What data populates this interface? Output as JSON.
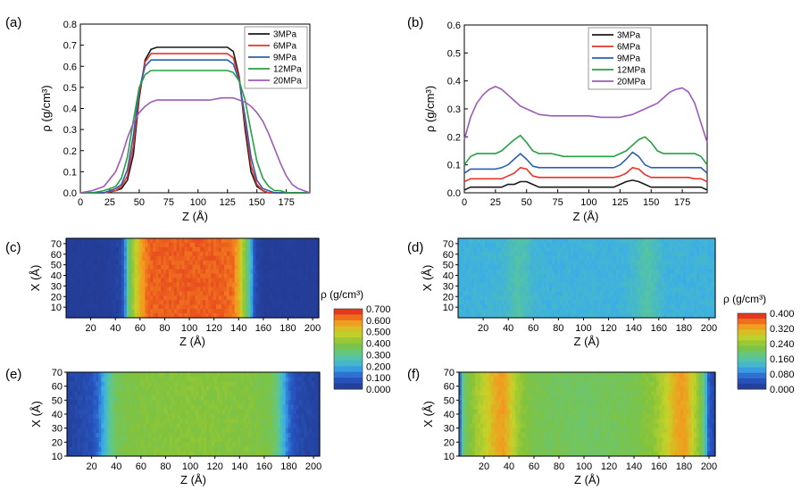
{
  "panel_labels": [
    "(a)",
    "(b)",
    "(c)",
    "(d)",
    "(e)",
    "(f)"
  ],
  "colors": {
    "3MPa": "#1a1a1a",
    "6MPa": "#e8332a",
    "9MPa": "#2b5fb0",
    "12MPa": "#23a043",
    "20MPa": "#9b5cb8"
  },
  "chart_data": [
    {
      "id": "a",
      "type": "line",
      "xlabel": "Z (Å)",
      "ylabel": "ρ (g/cm³)",
      "xlim": [
        0,
        195
      ],
      "ylim": [
        0,
        0.8
      ],
      "xticks": [
        0,
        25,
        50,
        75,
        100,
        125,
        150,
        175
      ],
      "yticks": [
        0.0,
        0.1,
        0.2,
        0.3,
        0.4,
        0.5,
        0.6,
        0.7,
        0.8
      ],
      "legend": "top-right",
      "x": [
        0,
        10,
        20,
        30,
        35,
        40,
        45,
        50,
        55,
        60,
        65,
        70,
        80,
        90,
        100,
        110,
        120,
        125,
        130,
        135,
        140,
        145,
        150,
        155,
        160,
        165,
        170,
        175,
        180,
        185,
        190,
        195
      ],
      "series": [
        {
          "name": "3MPa",
          "values": [
            0.0,
            0.0,
            0.0,
            0.01,
            0.02,
            0.06,
            0.18,
            0.45,
            0.63,
            0.68,
            0.69,
            0.69,
            0.69,
            0.69,
            0.69,
            0.69,
            0.69,
            0.69,
            0.67,
            0.55,
            0.3,
            0.1,
            0.03,
            0.01,
            0.0,
            0.0,
            0.0,
            0.0,
            0.0,
            0.0,
            0.0,
            0.0
          ]
        },
        {
          "name": "6MPa",
          "values": [
            0.0,
            0.0,
            0.0,
            0.01,
            0.03,
            0.08,
            0.22,
            0.47,
            0.62,
            0.66,
            0.66,
            0.66,
            0.66,
            0.66,
            0.66,
            0.66,
            0.66,
            0.66,
            0.64,
            0.54,
            0.33,
            0.13,
            0.04,
            0.01,
            0.0,
            0.0,
            0.0,
            0.0,
            0.0,
            0.0,
            0.0,
            0.0
          ]
        },
        {
          "name": "9MPa",
          "values": [
            0.0,
            0.0,
            0.0,
            0.02,
            0.04,
            0.11,
            0.27,
            0.49,
            0.6,
            0.63,
            0.63,
            0.63,
            0.63,
            0.63,
            0.63,
            0.63,
            0.63,
            0.63,
            0.61,
            0.53,
            0.36,
            0.17,
            0.06,
            0.02,
            0.01,
            0.0,
            0.0,
            0.0,
            0.0,
            0.0,
            0.0,
            0.0
          ]
        },
        {
          "name": "12MPa",
          "values": [
            0.0,
            0.0,
            0.01,
            0.03,
            0.07,
            0.17,
            0.34,
            0.5,
            0.56,
            0.58,
            0.58,
            0.58,
            0.58,
            0.58,
            0.58,
            0.58,
            0.58,
            0.58,
            0.57,
            0.53,
            0.44,
            0.29,
            0.15,
            0.07,
            0.03,
            0.01,
            0.01,
            0.0,
            0.0,
            0.0,
            0.0,
            0.0
          ]
        },
        {
          "name": "20MPa",
          "values": [
            0.0,
            0.01,
            0.03,
            0.1,
            0.17,
            0.26,
            0.33,
            0.38,
            0.41,
            0.43,
            0.44,
            0.44,
            0.44,
            0.44,
            0.44,
            0.44,
            0.45,
            0.45,
            0.45,
            0.44,
            0.43,
            0.41,
            0.38,
            0.34,
            0.28,
            0.21,
            0.14,
            0.08,
            0.04,
            0.02,
            0.01,
            0.0
          ]
        }
      ]
    },
    {
      "id": "b",
      "type": "line",
      "xlabel": "Z (Å)",
      "ylabel": "ρ (g/cm³)",
      "xlim": [
        0,
        195
      ],
      "ylim": [
        0,
        0.6
      ],
      "xticks": [
        0,
        25,
        50,
        75,
        100,
        125,
        150,
        175
      ],
      "yticks": [
        0.0,
        0.1,
        0.2,
        0.3,
        0.4,
        0.5,
        0.6
      ],
      "legend": "top-left",
      "x": [
        0,
        5,
        10,
        15,
        20,
        25,
        30,
        35,
        40,
        45,
        50,
        55,
        60,
        70,
        80,
        90,
        100,
        110,
        120,
        125,
        130,
        135,
        140,
        145,
        150,
        155,
        160,
        165,
        170,
        175,
        180,
        185,
        190,
        195
      ],
      "series": [
        {
          "name": "3MPa",
          "values": [
            0.01,
            0.02,
            0.02,
            0.02,
            0.02,
            0.02,
            0.02,
            0.03,
            0.03,
            0.04,
            0.04,
            0.03,
            0.02,
            0.02,
            0.02,
            0.02,
            0.02,
            0.02,
            0.02,
            0.03,
            0.04,
            0.045,
            0.04,
            0.03,
            0.02,
            0.02,
            0.02,
            0.02,
            0.02,
            0.02,
            0.02,
            0.02,
            0.02,
            0.01
          ]
        },
        {
          "name": "6MPa",
          "values": [
            0.04,
            0.05,
            0.05,
            0.05,
            0.05,
            0.05,
            0.05,
            0.06,
            0.07,
            0.09,
            0.085,
            0.06,
            0.055,
            0.055,
            0.055,
            0.055,
            0.055,
            0.055,
            0.055,
            0.06,
            0.07,
            0.09,
            0.085,
            0.065,
            0.055,
            0.055,
            0.055,
            0.055,
            0.055,
            0.055,
            0.055,
            0.05,
            0.05,
            0.04
          ]
        },
        {
          "name": "9MPa",
          "values": [
            0.07,
            0.085,
            0.085,
            0.085,
            0.085,
            0.085,
            0.09,
            0.1,
            0.12,
            0.14,
            0.12,
            0.095,
            0.09,
            0.09,
            0.09,
            0.09,
            0.09,
            0.09,
            0.09,
            0.1,
            0.12,
            0.145,
            0.13,
            0.1,
            0.09,
            0.09,
            0.09,
            0.09,
            0.09,
            0.09,
            0.09,
            0.09,
            0.09,
            0.07
          ]
        },
        {
          "name": "12MPa",
          "values": [
            0.1,
            0.13,
            0.14,
            0.14,
            0.14,
            0.14,
            0.15,
            0.17,
            0.19,
            0.205,
            0.18,
            0.15,
            0.14,
            0.14,
            0.13,
            0.13,
            0.13,
            0.13,
            0.13,
            0.14,
            0.15,
            0.17,
            0.19,
            0.2,
            0.18,
            0.15,
            0.14,
            0.14,
            0.14,
            0.14,
            0.14,
            0.14,
            0.13,
            0.1
          ]
        },
        {
          "name": "20MPa",
          "values": [
            0.19,
            0.27,
            0.32,
            0.35,
            0.37,
            0.38,
            0.37,
            0.35,
            0.33,
            0.31,
            0.3,
            0.29,
            0.28,
            0.275,
            0.275,
            0.275,
            0.275,
            0.27,
            0.27,
            0.27,
            0.275,
            0.28,
            0.29,
            0.3,
            0.31,
            0.32,
            0.34,
            0.36,
            0.37,
            0.375,
            0.36,
            0.32,
            0.25,
            0.18
          ]
        }
      ]
    },
    {
      "id": "c",
      "type": "heatmap",
      "xlabel": "Z (Å)",
      "ylabel": "X (Å)",
      "xlim": [
        0,
        205
      ],
      "ylim": [
        0,
        75
      ],
      "xticks": [
        20,
        40,
        60,
        80,
        100,
        120,
        140,
        160,
        180,
        200
      ],
      "yticks": [
        10,
        20,
        30,
        40,
        50,
        60,
        70
      ],
      "profile_z": [
        0,
        10,
        20,
        30,
        40,
        45,
        48,
        50,
        55,
        60,
        65,
        70,
        80,
        100,
        120,
        135,
        140,
        145,
        150,
        152,
        155,
        160,
        180,
        205
      ],
      "profile_rho": [
        0.02,
        0.02,
        0.02,
        0.02,
        0.03,
        0.05,
        0.16,
        0.3,
        0.45,
        0.55,
        0.62,
        0.64,
        0.64,
        0.64,
        0.64,
        0.63,
        0.55,
        0.4,
        0.22,
        0.1,
        0.04,
        0.02,
        0.02,
        0.02
      ]
    },
    {
      "id": "d",
      "type": "heatmap",
      "xlabel": "Z (Å)",
      "ylabel": "X (Å)",
      "xlim": [
        0,
        205
      ],
      "ylim": [
        0,
        75
      ],
      "xticks": [
        20,
        40,
        60,
        80,
        100,
        120,
        140,
        160,
        180,
        200
      ],
      "yticks": [
        10,
        20,
        30,
        40,
        50,
        60,
        70
      ],
      "profile_z": [
        0,
        20,
        35,
        42,
        48,
        55,
        60,
        70,
        100,
        130,
        140,
        145,
        152,
        158,
        165,
        180,
        205
      ],
      "profile_rho": [
        0.12,
        0.12,
        0.125,
        0.14,
        0.155,
        0.14,
        0.125,
        0.12,
        0.12,
        0.12,
        0.13,
        0.145,
        0.155,
        0.14,
        0.12,
        0.12,
        0.12
      ]
    },
    {
      "id": "e",
      "type": "heatmap",
      "xlabel": "Z (Å)",
      "ylabel": "X (Å)",
      "xlim": [
        0,
        205
      ],
      "ylim": [
        10,
        70
      ],
      "xticks": [
        20,
        40,
        60,
        80,
        100,
        120,
        140,
        160,
        180,
        200
      ],
      "yticks": [
        10,
        20,
        30,
        40,
        50,
        60,
        70
      ],
      "profile_z": [
        0,
        10,
        20,
        25,
        30,
        35,
        40,
        50,
        60,
        100,
        150,
        165,
        170,
        175,
        180,
        185,
        190,
        205
      ],
      "profile_rho": [
        0.03,
        0.05,
        0.07,
        0.12,
        0.2,
        0.3,
        0.36,
        0.38,
        0.39,
        0.4,
        0.39,
        0.37,
        0.33,
        0.22,
        0.12,
        0.07,
        0.05,
        0.03
      ]
    },
    {
      "id": "f",
      "type": "heatmap",
      "xlabel": "Z (Å)",
      "ylabel": "X (Å)",
      "xlim": [
        0,
        205
      ],
      "ylim": [
        10,
        70
      ],
      "xticks": [
        20,
        40,
        60,
        80,
        100,
        120,
        140,
        160,
        180,
        200
      ],
      "yticks": [
        10,
        20,
        30,
        40,
        50,
        60,
        70
      ],
      "profile_z": [
        0,
        3,
        8,
        15,
        22,
        30,
        35,
        40,
        48,
        60,
        100,
        140,
        155,
        165,
        172,
        178,
        182,
        188,
        195,
        200,
        205
      ],
      "profile_rho": [
        0.02,
        0.18,
        0.22,
        0.25,
        0.28,
        0.32,
        0.33,
        0.3,
        0.24,
        0.21,
        0.2,
        0.21,
        0.23,
        0.27,
        0.31,
        0.33,
        0.32,
        0.27,
        0.2,
        0.05,
        0.02
      ]
    }
  ],
  "colorbars": [
    {
      "title": "ρ (g/cm³)",
      "min": 0.0,
      "max": 0.7,
      "labels": [
        "0.700",
        "0.600",
        "0.500",
        "0.400",
        "0.300",
        "0.200",
        "0.100",
        "0.000"
      ]
    },
    {
      "title": "ρ (g/cm³)",
      "min": 0.0,
      "max": 0.4,
      "labels": [
        "0.400",
        "0.320",
        "0.240",
        "0.160",
        "0.080",
        "0.000"
      ]
    }
  ]
}
